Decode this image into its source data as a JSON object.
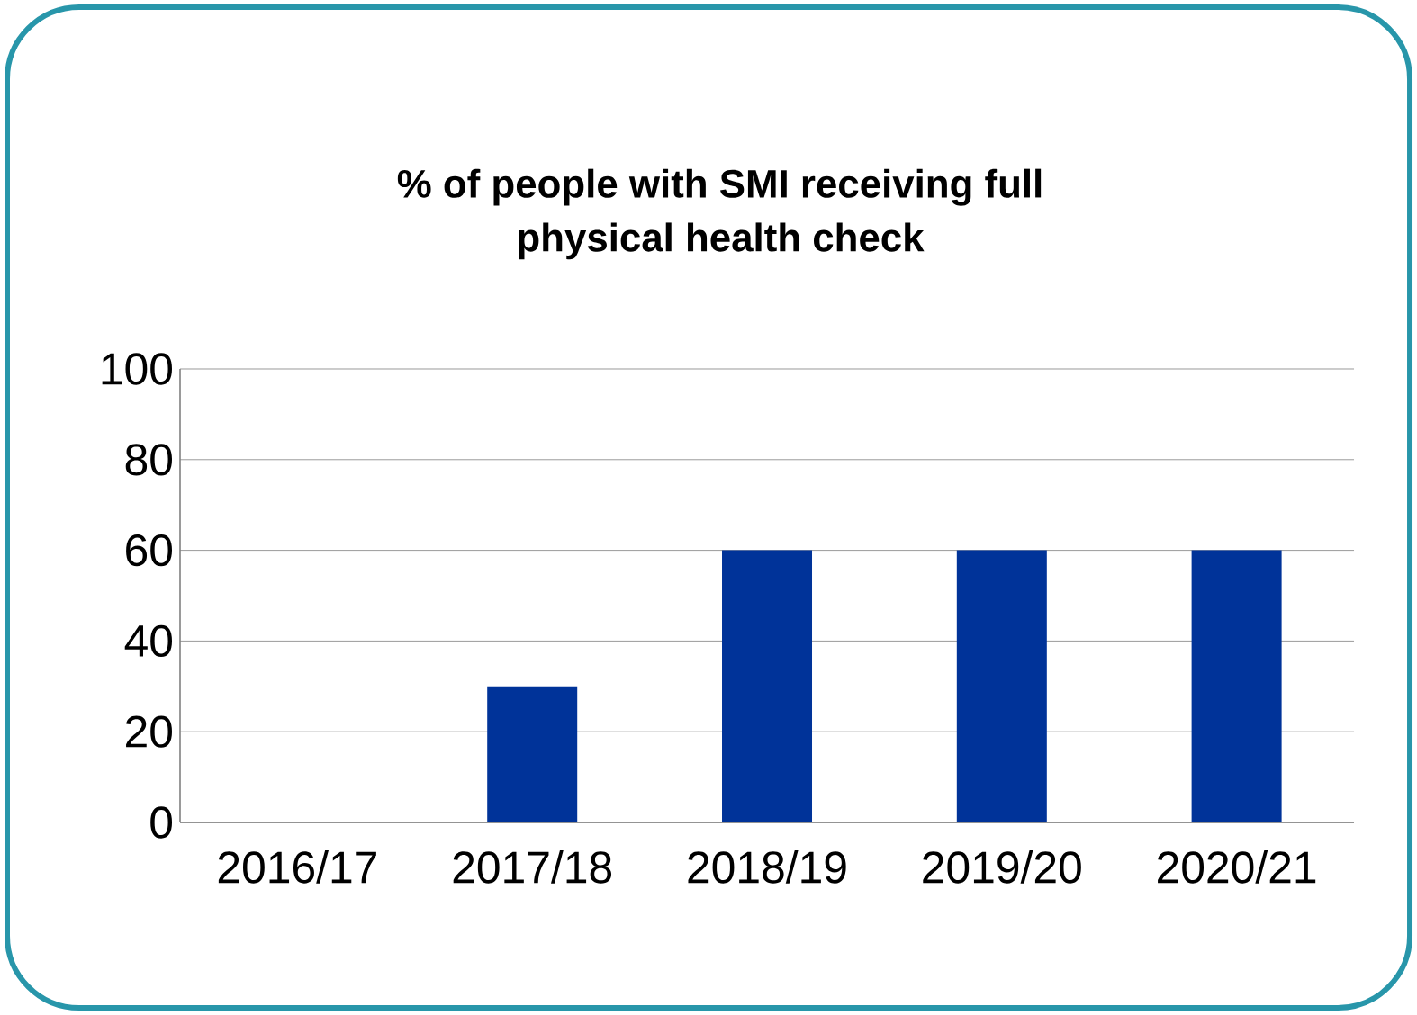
{
  "chart_data": {
    "type": "bar",
    "title": "% of people with SMI receiving full physical health check",
    "categories": [
      "2016/17",
      "2017/18",
      "2018/19",
      "2019/20",
      "2020/21"
    ],
    "values": [
      0,
      30,
      60,
      60,
      60
    ],
    "color": "#003399",
    "ylim": [
      0,
      100
    ],
    "yticks": [
      0,
      20,
      40,
      60,
      80,
      100
    ],
    "grid": "y"
  }
}
